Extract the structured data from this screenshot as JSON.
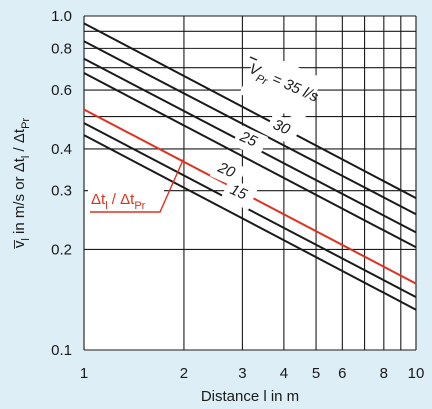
{
  "chart_data": {
    "type": "line",
    "xscale": "log",
    "yscale": "log",
    "xlim": [
      1,
      10
    ],
    "ylim": [
      0.1,
      1.0
    ],
    "grid": true,
    "xlabel": "Distance l in m",
    "ylabel_parts": [
      "v̅",
      "l",
      " in m/s or Δt",
      "l",
      " / Δt",
      "Pr"
    ],
    "x_ticks": [
      {
        "value": 1,
        "label": "1"
      },
      {
        "value": 2,
        "label": "2"
      },
      {
        "value": 3,
        "label": "3"
      },
      {
        "value": 4,
        "label": "4"
      },
      {
        "value": 5,
        "label": "5"
      },
      {
        "value": 6,
        "label": "6"
      },
      {
        "value": 8,
        "label": "8"
      },
      {
        "value": 10,
        "label": "10"
      }
    ],
    "y_ticks": [
      {
        "value": 0.1,
        "label": "0.1"
      },
      {
        "value": 0.2,
        "label": "0.2"
      },
      {
        "value": 0.3,
        "label": "0.3"
      },
      {
        "value": 0.4,
        "label": "0.4"
      },
      {
        "value": 0.6,
        "label": "0.6"
      },
      {
        "value": 0.8,
        "label": "0.8"
      },
      {
        "value": 1.0,
        "label": "1.0"
      }
    ],
    "minor_y_grid": [
      0.5,
      0.7,
      0.9
    ],
    "minor_x_grid": [
      7,
      9
    ],
    "series": [
      {
        "name": "35",
        "color": "#1a1a1a",
        "x": [
          1,
          10
        ],
        "y": [
          0.95,
          0.285
        ]
      },
      {
        "name": "30",
        "color": "#1a1a1a",
        "x": [
          1,
          10
        ],
        "y": [
          0.84,
          0.255
        ]
      },
      {
        "name": "25",
        "color": "#1a1a1a",
        "x": [
          1,
          10
        ],
        "y": [
          0.745,
          0.225
        ]
      },
      {
        "name": "20",
        "color": "#1a1a1a",
        "x": [
          1,
          10
        ],
        "y": [
          0.675,
          0.203
        ]
      },
      {
        "name": "15",
        "color": "#1a1a1a",
        "x": [
          1,
          10
        ],
        "y": [
          0.478,
          0.144
        ]
      },
      {
        "name": "",
        "color": "#1a1a1a",
        "x": [
          1,
          10
        ],
        "y": [
          0.44,
          0.132
        ]
      },
      {
        "name": "Δt_l/Δt_Pr",
        "color": "#e0301e",
        "x": [
          1,
          10
        ],
        "y": [
          0.525,
          0.158
        ]
      }
    ],
    "annotations": {
      "flow_label": {
        "prefix": "V",
        "sub": "Pr",
        "text": " = 35 l/s"
      },
      "series_labels": [
        "30",
        "25",
        "20",
        "15"
      ],
      "highlight_label": {
        "a": "Δt",
        "a_sub": "l",
        "sep": " / ",
        "b": "Δt",
        "b_sub": "Pr"
      }
    },
    "colors": {
      "background": "#ddeef7",
      "plot_area": "#ffffff",
      "lines": "#1a1a1a",
      "highlight": "#e0301e"
    }
  }
}
